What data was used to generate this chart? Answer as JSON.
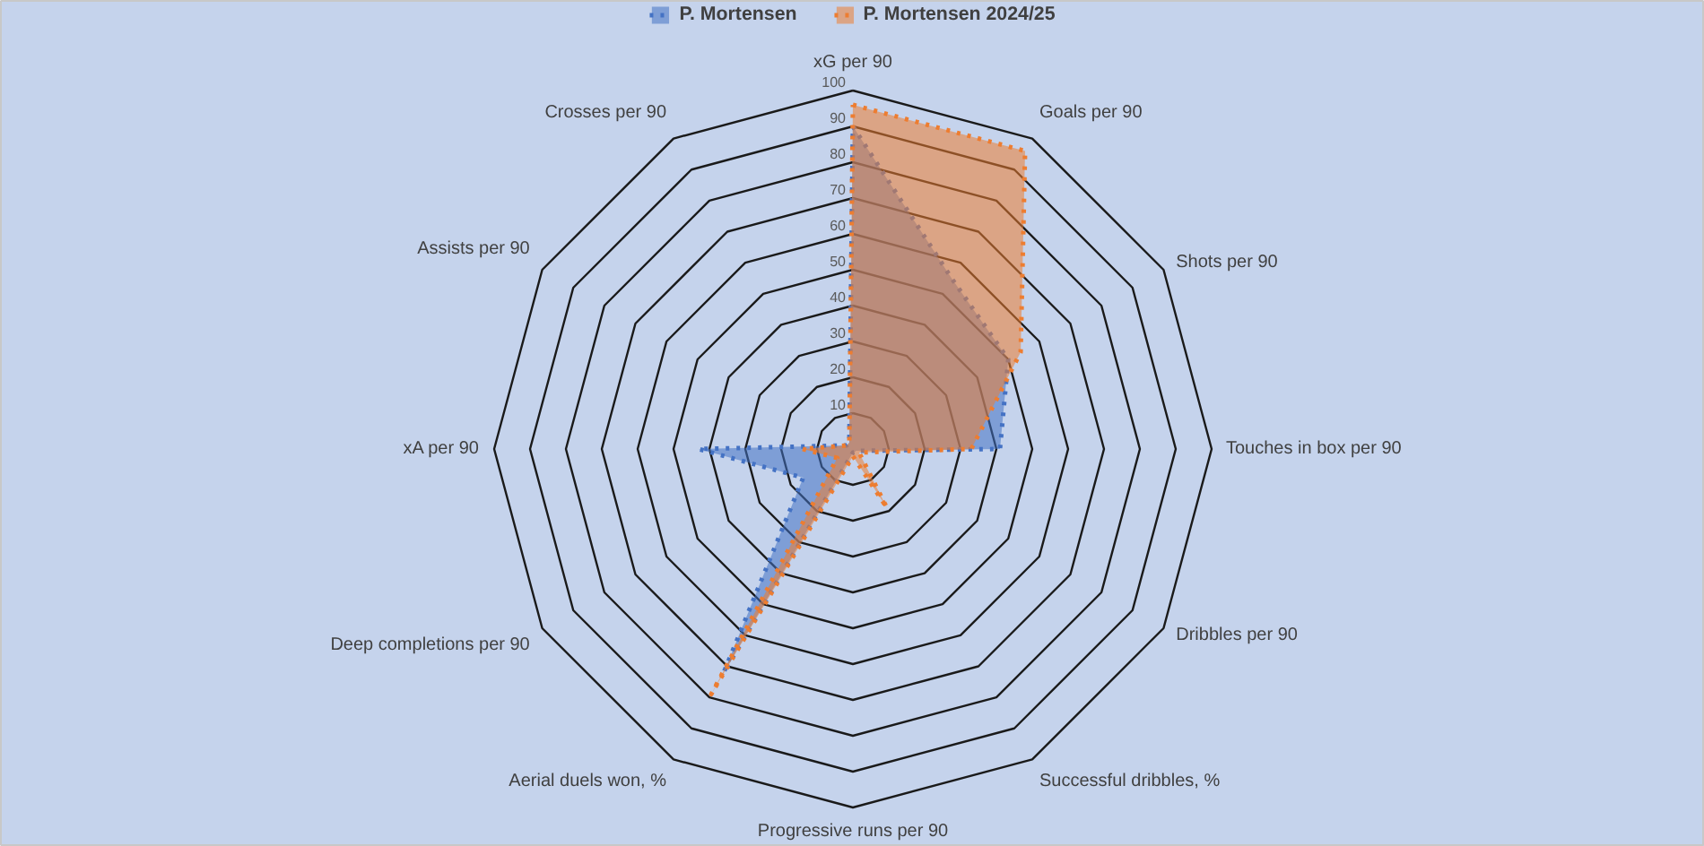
{
  "chart_data": {
    "type": "radar",
    "categories": [
      "xG per 90",
      "Goals per 90",
      "Shots per 90",
      "Touches in box per 90",
      "Dribbles per 90",
      "Successful dribbles, %",
      "Progressive runs per 90",
      "Aerial duels won, %",
      "Deep completions per 90",
      "xA per 90",
      "Assists per 90",
      "Crosses per 90"
    ],
    "series": [
      {
        "name": "P. Mortensen",
        "color": "#4472c4",
        "values": [
          90,
          55,
          50,
          41,
          1,
          1,
          1,
          72,
          16,
          43,
          2,
          2
        ]
      },
      {
        "name": "P. Mortensen 2024/25",
        "color": "#ed7d31",
        "values": [
          96,
          96,
          54,
          33,
          2,
          19,
          2,
          79,
          5,
          14,
          2,
          2
        ]
      }
    ],
    "ylim": [
      0,
      100
    ],
    "yticks": [
      10,
      20,
      30,
      40,
      50,
      60,
      70,
      80,
      90,
      100
    ],
    "legend": "top",
    "line_style": "dotted",
    "marker": "none"
  }
}
